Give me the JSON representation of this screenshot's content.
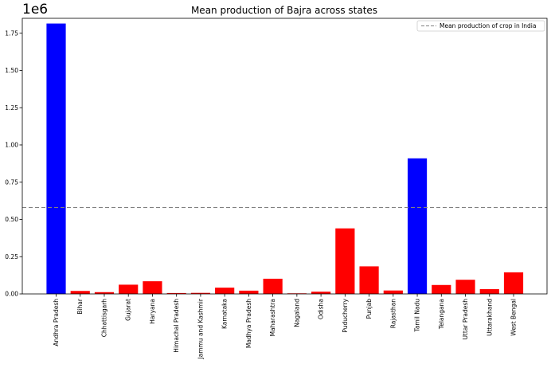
{
  "chart_data": {
    "type": "bar",
    "title": "Mean production of Bajra across states",
    "xlabel": "",
    "ylabel": "",
    "y_scale_label": "1e6",
    "ylim": [
      0,
      1.85
    ],
    "yticks": [
      "0.00",
      "0.25",
      "0.50",
      "0.75",
      "1.00",
      "1.25",
      "1.50",
      "1.75"
    ],
    "ytick_values": [
      0,
      0.25,
      0.5,
      0.75,
      1.0,
      1.25,
      1.5,
      1.75
    ],
    "categories": [
      "Andhra Pradesh",
      "Bihar",
      "Chhattisgarh",
      "Gujarat",
      "Haryana",
      "Himachal Pradesh",
      "Jammu and Kashmir",
      "Karnataka",
      "Madhya Pradesh",
      "Maharashtra",
      "Nagaland",
      "Odisha",
      "Puducherry",
      "Punjab",
      "Rajasthan",
      "Tamil Nadu",
      "Telangana",
      "Uttar Pradesh",
      "Uttarakhand",
      "West Bengal"
    ],
    "values": [
      1.815,
      0.02,
      0.012,
      0.062,
      0.085,
      0.006,
      0.007,
      0.042,
      0.022,
      0.102,
      0.004,
      0.015,
      0.44,
      0.185,
      0.023,
      0.91,
      0.06,
      0.095,
      0.032,
      0.145
    ],
    "bar_colors": [
      "#0000ff",
      "#ff0000",
      "#ff0000",
      "#ff0000",
      "#ff0000",
      "#ff0000",
      "#ff0000",
      "#ff0000",
      "#ff0000",
      "#ff0000",
      "#ff0000",
      "#ff0000",
      "#ff0000",
      "#ff0000",
      "#ff0000",
      "#0000ff",
      "#ff0000",
      "#ff0000",
      "#ff0000",
      "#ff0000"
    ],
    "reference_line": {
      "value": 0.58,
      "style": "dashed",
      "color": "#808080"
    },
    "legend": {
      "placement": "top-right",
      "entries": [
        "Mean production of crop in India"
      ]
    },
    "grid": false
  }
}
